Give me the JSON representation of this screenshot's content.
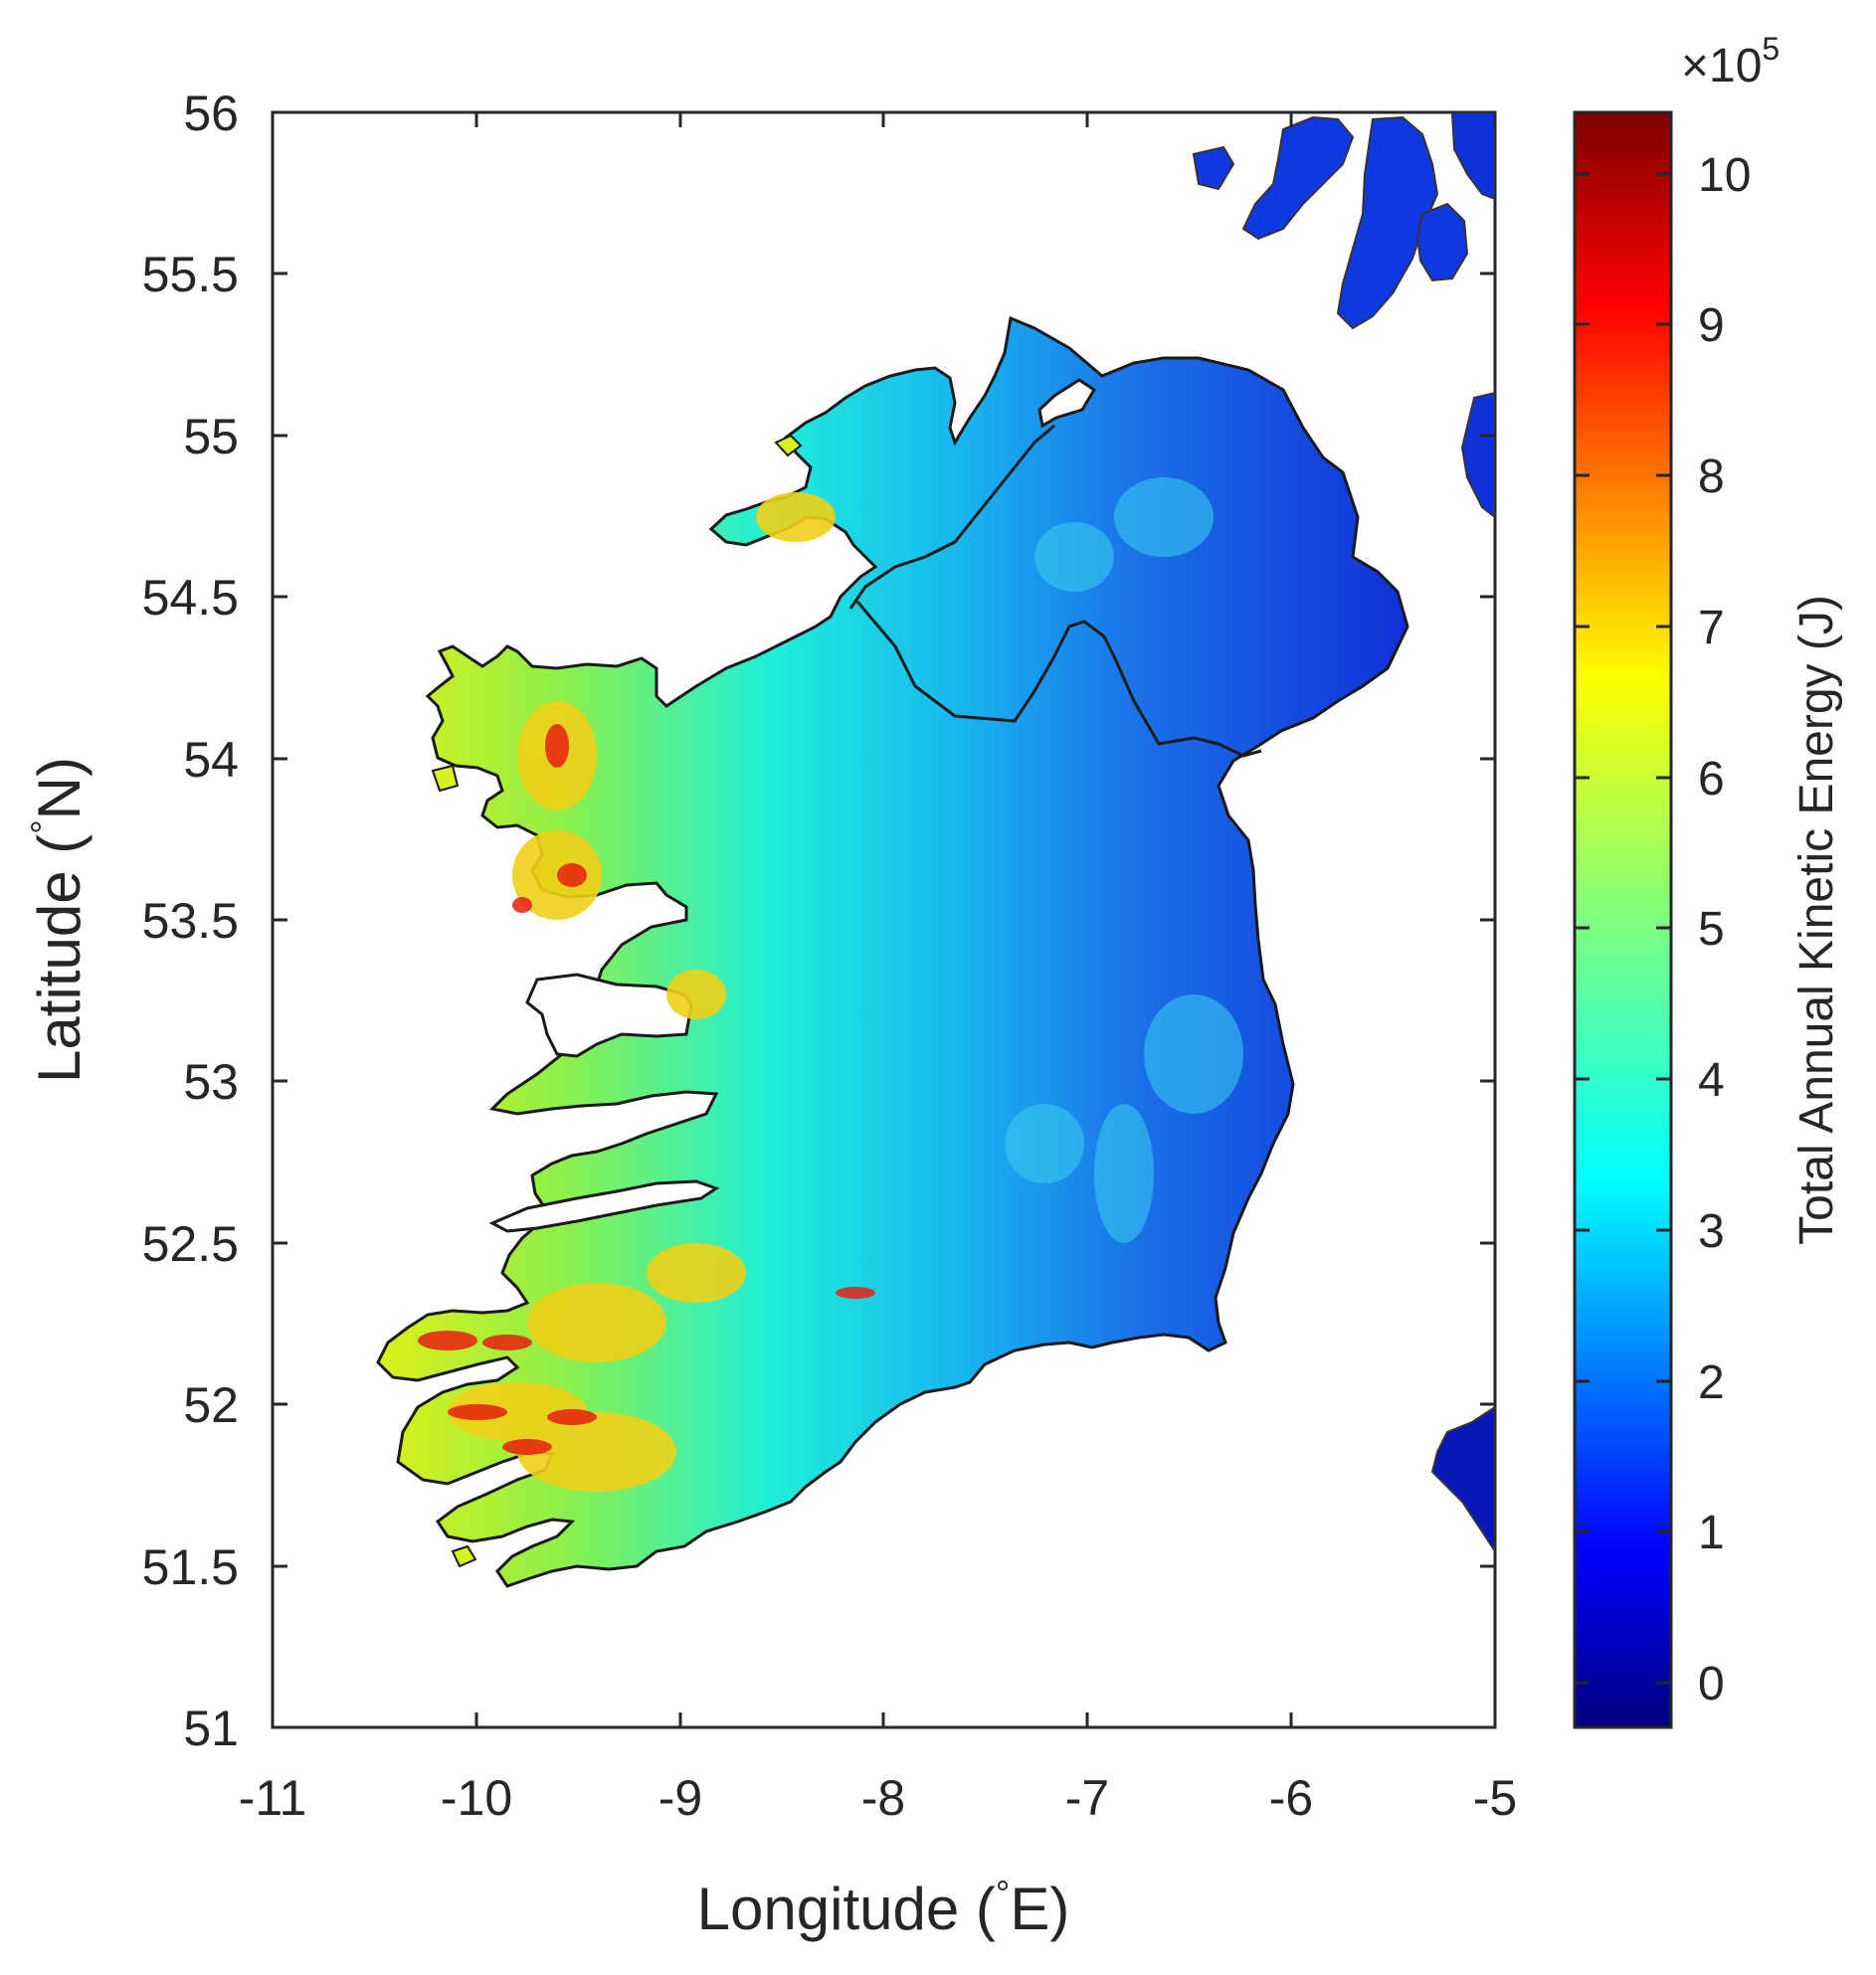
{
  "map": {
    "type": "raster-map",
    "region": "Ireland",
    "xlabel_main": "Longitude (",
    "xlabel_deg": "°",
    "xlabel_end": "E)",
    "ylabel_main": "Latitude (",
    "ylabel_deg": "°",
    "ylabel_end": "N)",
    "xlim": [
      -11,
      -5
    ],
    "ylim": [
      51,
      56
    ],
    "xticks": [
      "-11",
      "-10",
      "-9",
      "-8",
      "-7",
      "-6",
      "-5"
    ],
    "yticks": [
      "51",
      "51.5",
      "52",
      "52.5",
      "53",
      "53.5",
      "54",
      "54.5",
      "55",
      "55.5",
      "56"
    ],
    "colorbar": {
      "label": "Total Annual Kinetic Energy (J)",
      "multiplier": "×10",
      "exponent": "5",
      "ticks": [
        "0",
        "1",
        "2",
        "3",
        "4",
        "5",
        "6",
        "7",
        "8",
        "9",
        "10"
      ],
      "range": [
        -0.3,
        10.4
      ],
      "colormap": "jet"
    },
    "colors": {
      "outline": "#1a1a1a",
      "axis": "#262626",
      "east": "#1a4fe0",
      "central": "#16e0f0",
      "west": "#b8f02a",
      "hot": "#e01010"
    }
  }
}
